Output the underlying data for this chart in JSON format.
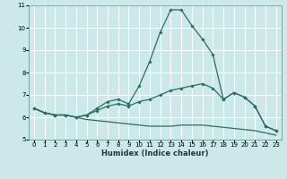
{
  "xlabel": "Humidex (Indice chaleur)",
  "x": [
    0,
    1,
    2,
    3,
    4,
    5,
    6,
    7,
    8,
    9,
    10,
    11,
    12,
    13,
    14,
    15,
    16,
    17,
    18,
    19,
    20,
    21,
    22,
    23
  ],
  "line1": [
    6.4,
    6.2,
    6.1,
    6.1,
    6.0,
    6.1,
    6.4,
    6.7,
    6.8,
    6.6,
    7.4,
    8.5,
    9.8,
    10.8,
    10.8,
    10.1,
    9.5,
    8.8,
    6.8,
    7.1,
    6.9,
    6.5,
    5.6,
    5.4
  ],
  "line2": [
    6.4,
    6.2,
    6.1,
    6.1,
    6.0,
    6.1,
    6.3,
    6.5,
    6.6,
    6.5,
    6.7,
    6.8,
    7.0,
    7.2,
    7.3,
    7.4,
    7.5,
    7.3,
    6.8,
    7.1,
    6.9,
    6.5,
    5.6,
    5.4
  ],
  "line3": [
    6.4,
    6.2,
    6.1,
    6.1,
    6.0,
    5.9,
    5.85,
    5.8,
    5.75,
    5.7,
    5.65,
    5.6,
    5.6,
    5.6,
    5.65,
    5.65,
    5.65,
    5.6,
    5.55,
    5.5,
    5.45,
    5.4,
    5.3,
    5.2
  ],
  "line_color": "#2a6e62",
  "bg_color": "#cce8e8",
  "grid_color": "#b8d8d8",
  "ylim": [
    5,
    11
  ],
  "xlim": [
    -0.5,
    23.5
  ],
  "yticks": [
    5,
    6,
    7,
    8,
    9,
    10,
    11
  ],
  "xticks": [
    0,
    1,
    2,
    3,
    4,
    5,
    6,
    7,
    8,
    9,
    10,
    11,
    12,
    13,
    14,
    15,
    16,
    17,
    18,
    19,
    20,
    21,
    22,
    23
  ],
  "xlabel_fontsize": 6.0,
  "tick_fontsize": 5.0
}
